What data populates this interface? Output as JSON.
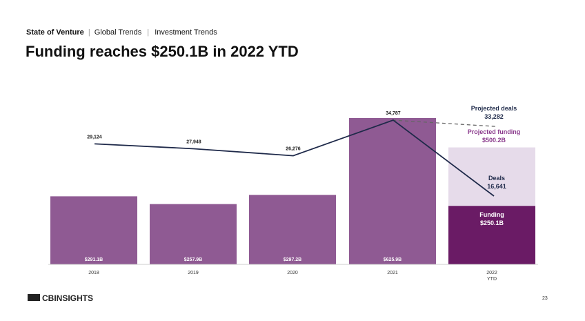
{
  "header": {
    "section": "State of Venture",
    "crumb1": "Global Trends",
    "crumb2": "Investment Trends",
    "sep": "|"
  },
  "title": "Funding reaches $250.1B in 2022 YTD",
  "footer": {
    "logo": "CBINSIGHTS",
    "page": "23"
  },
  "colors": {
    "bar": "#8f5a93",
    "projected": "#e6dbea",
    "ytd": "#6a1b65",
    "line": "#1f2a4a",
    "proj_label": "#8a3a8c"
  },
  "chart_data": {
    "type": "bar+line",
    "categories": [
      "2018",
      "2019",
      "2020",
      "2021",
      "2022 YTD"
    ],
    "category_lines": [
      [
        "2018"
      ],
      [
        "2019"
      ],
      [
        "2020"
      ],
      [
        "2021"
      ],
      [
        "2022",
        "YTD"
      ]
    ],
    "series": [
      {
        "name": "Funding",
        "type": "bar",
        "values": [
          291.1,
          257.9,
          297.2,
          625.9,
          250.1
        ],
        "labels": [
          "$291.1B",
          "$257.9B",
          "$297.2B",
          "$625.9B",
          "$250.1B"
        ]
      },
      {
        "name": "Deals",
        "type": "line",
        "values": [
          29124,
          27948,
          26276,
          34787,
          16641
        ],
        "labels": [
          "29,124",
          "27,948",
          "26,276",
          "34,787",
          "16,641"
        ]
      }
    ],
    "projected": {
      "funding": 500.2,
      "funding_label": "$500.2B",
      "deals": 33282,
      "deals_label": "33,282"
    },
    "annotations": {
      "projected_deals": "Projected deals",
      "projected_funding": "Projected funding",
      "deals": "Deals",
      "funding": "Funding"
    }
  }
}
